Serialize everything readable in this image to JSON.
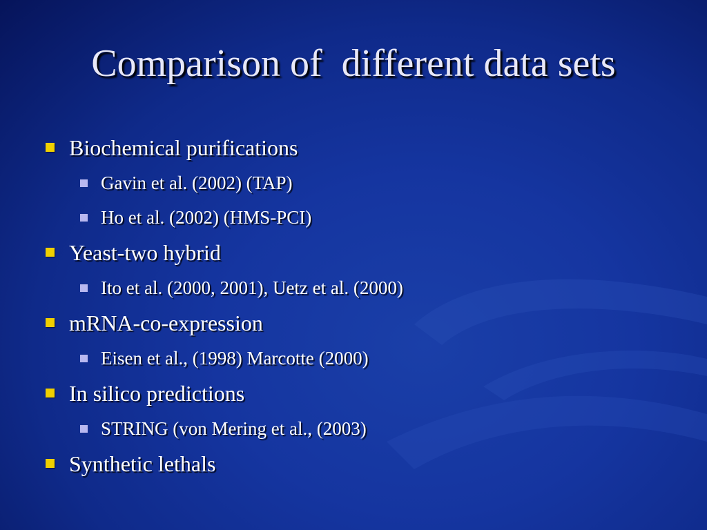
{
  "title": "Comparison of  different data sets",
  "items": [
    {
      "text": "Biochemical purifications",
      "subitems": [
        "Gavin et al. (2002) (TAP)",
        "Ho et al. (2002) (HMS-PCI)"
      ]
    },
    {
      "text": "Yeast-two hybrid",
      "subitems": [
        "Ito et al. (2000, 2001), Uetz et al. (2000)"
      ]
    },
    {
      "text": "mRNA-co-expression",
      "subitems": [
        "Eisen et al., (1998) Marcotte (2000)"
      ]
    },
    {
      "text": "In silico predictions",
      "subitems": [
        "STRING (von Mering et al., (2003)"
      ]
    },
    {
      "text": "Synthetic lethals",
      "subitems": []
    }
  ]
}
